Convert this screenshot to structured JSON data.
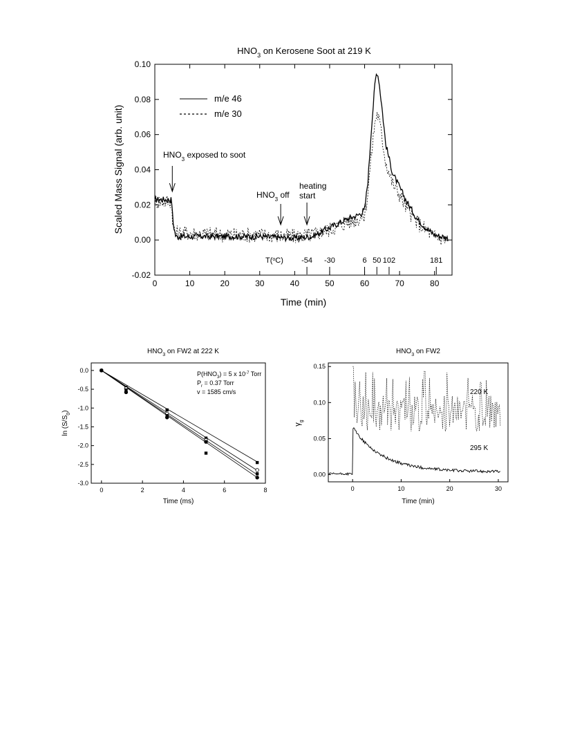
{
  "chart_data": [
    {
      "type": "line",
      "title_main": "HNO",
      "title_sub": "3",
      "title_rest": " on Kerosene Soot at 219 K",
      "xlabel": "Time (min)",
      "ylabel": "Scaled Mass Signal (arb. unit)",
      "xlim": [
        0,
        85
      ],
      "ylim": [
        -0.02,
        0.1
      ],
      "x_ticks": [
        "0",
        "10",
        "20",
        "30",
        "40",
        "50",
        "60",
        "70",
        "80"
      ],
      "y_ticks": [
        "-0.02",
        "0.00",
        "0.02",
        "0.04",
        "0.06",
        "0.08",
        "0.10"
      ],
      "legend": [
        {
          "name": "m/e 46",
          "style": "solid"
        },
        {
          "name": "m/e 30",
          "style": "dotted"
        }
      ],
      "series": [
        {
          "name": "m/e 46",
          "x": [
            0,
            4.8,
            5.2,
            6,
            10,
            20,
            30,
            40,
            45,
            50,
            55,
            58,
            60,
            61,
            62,
            63,
            63.5,
            64,
            65,
            66,
            68,
            70,
            72,
            75,
            78,
            80,
            84
          ],
          "y": [
            0.023,
            0.023,
            0.01,
            0.002,
            0.002,
            0.002,
            0.002,
            0.001,
            0.002,
            0.007,
            0.012,
            0.014,
            0.017,
            0.035,
            0.065,
            0.09,
            0.096,
            0.092,
            0.075,
            0.055,
            0.038,
            0.03,
            0.022,
            0.012,
            0.006,
            0.003,
            0.001
          ]
        },
        {
          "name": "m/e 30",
          "x": [
            0,
            4.8,
            5.2,
            6,
            10,
            20,
            30,
            40,
            45,
            50,
            55,
            58,
            60,
            61,
            62,
            63,
            63.5,
            64,
            65,
            66,
            68,
            70,
            72,
            75,
            78,
            80,
            84
          ],
          "y": [
            0.022,
            0.022,
            0.008,
            0.004,
            0.004,
            0.003,
            0.003,
            0.002,
            0.003,
            0.006,
            0.01,
            0.012,
            0.014,
            0.028,
            0.05,
            0.068,
            0.072,
            0.07,
            0.058,
            0.045,
            0.032,
            0.026,
            0.018,
            0.01,
            0.005,
            0.002,
            0.0
          ]
        }
      ],
      "annotations": {
        "exposed": {
          "pre": "HNO",
          "sub": "3",
          "post": " exposed to soot",
          "x": 5
        },
        "off": {
          "pre": "HNO",
          "sub": "3",
          "post": " off",
          "x": 36
        },
        "heating": {
          "line1": "heating",
          "line2": "start",
          "x": 43.5
        }
      },
      "temperature_scale": {
        "label_pre": "T(",
        "label_sup": "o",
        "label_post": "C)",
        "ticks": [
          {
            "label": "-54",
            "x": 43.5
          },
          {
            "label": "-30",
            "x": 50
          },
          {
            "label": "6",
            "x": 60
          },
          {
            "label": "50",
            "x": 63.5
          },
          {
            "label": "102",
            "x": 67
          },
          {
            "label": "181",
            "x": 80.5
          }
        ]
      }
    },
    {
      "type": "scatter",
      "title_main": "HNO",
      "title_sub": "3",
      "title_rest": " on FW2 at 222 K",
      "xlabel": "Time (ms)",
      "ylabel_pre": "ln (S/S",
      "ylabel_sub": "0",
      "ylabel_post": ")",
      "xlim": [
        -0.5,
        8
      ],
      "ylim": [
        -3.0,
        0.2
      ],
      "x_ticks": [
        "0",
        "2",
        "4",
        "6",
        "8"
      ],
      "y_ticks": [
        "0.0",
        "-0.5",
        "-1.0",
        "-1.5",
        "-2.0",
        "-2.5",
        "-3.0"
      ],
      "info": {
        "line1_pre": "P(HNO",
        "line1_sub": "3",
        "line1_mid": ") = 5 x 10",
        "line1_sup": "-7",
        "line1_post": " Torr",
        "line2_pre": "P",
        "line2_sub": "r",
        "line2_post": " = 0.37 Torr",
        "line3": "v = 1585 cm/s"
      },
      "points_x": [
        0,
        1.2,
        3.2,
        5.1,
        7.6
      ],
      "series": [
        {
          "values": [
            0.0,
            -0.45,
            -1.05,
            -1.8,
            -2.45
          ]
        },
        {
          "values": [
            0.0,
            -0.48,
            -1.15,
            -1.85,
            -2.65
          ]
        },
        {
          "values": [
            0.0,
            -0.52,
            -1.2,
            -2.2,
            -2.75
          ]
        },
        {
          "values": [
            0.0,
            -0.58,
            -1.25,
            -1.9,
            -2.85
          ]
        }
      ],
      "fit_slopes": [
        -0.32,
        -0.35,
        -0.365,
        -0.375
      ]
    },
    {
      "type": "line",
      "title_main": "HNO",
      "title_sub": "3",
      "title_rest": " on FW2",
      "xlabel": "Time (min)",
      "ylabel_pre": "γ",
      "ylabel_sub": "g",
      "xlim": [
        -5,
        32
      ],
      "ylim": [
        -0.01,
        0.155
      ],
      "x_ticks": [
        "0",
        "10",
        "20",
        "30"
      ],
      "y_ticks": [
        "0.00",
        "0.05",
        "0.10",
        "0.15"
      ],
      "series": [
        {
          "name": "220 K",
          "style": "dotted",
          "baseline": 0.085,
          "spike_amplitude": 0.06
        },
        {
          "name": "295 K",
          "style": "solid",
          "peak": 0.062,
          "decay_min": 6
        }
      ]
    }
  ]
}
